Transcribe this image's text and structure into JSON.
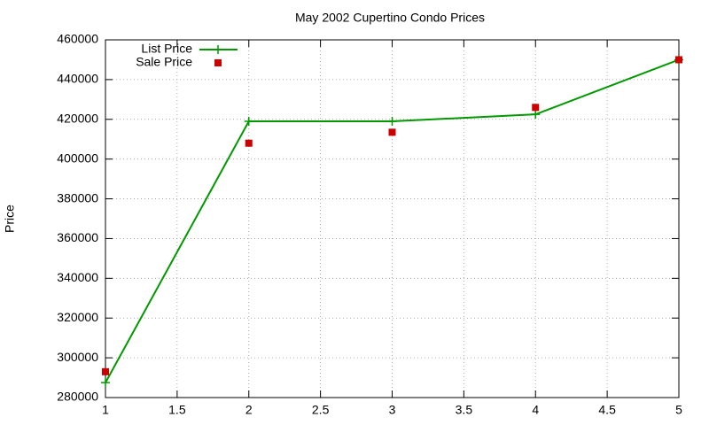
{
  "chart_data": {
    "type": "line",
    "title": "May 2002 Cupertino Condo Prices",
    "y_label": "Price",
    "x": [
      1,
      2,
      3,
      4,
      5
    ],
    "series": [
      {
        "name": "List Price",
        "color": "#009900",
        "line": true,
        "marker": "plus",
        "values": [
          287500,
          419000,
          419000,
          422500,
          450000
        ]
      },
      {
        "name": "Sale Price",
        "color": "#cc0000",
        "line": false,
        "marker": "square",
        "values": [
          293000,
          408000,
          413500,
          426000,
          450000
        ]
      }
    ],
    "xlim": [
      1,
      5
    ],
    "xticks": [
      1,
      1.5,
      2,
      2.5,
      3,
      3.5,
      4,
      4.5,
      5
    ],
    "ylim": [
      280000,
      460000
    ],
    "yticks": [
      280000,
      300000,
      320000,
      340000,
      360000,
      380000,
      400000,
      420000,
      440000,
      460000
    ],
    "grid": true,
    "legend": "top-left"
  }
}
